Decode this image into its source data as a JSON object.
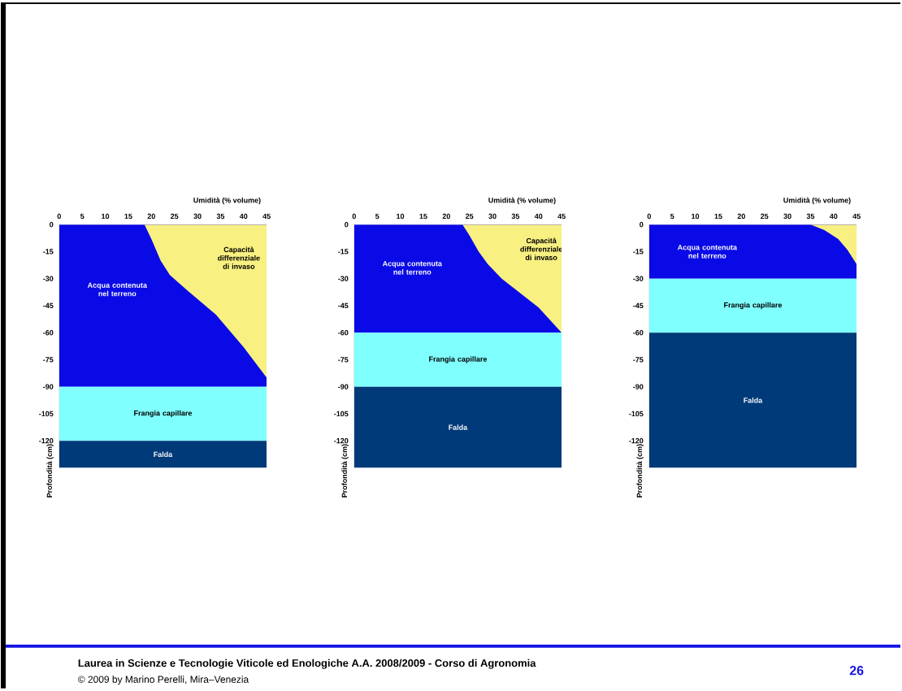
{
  "chart_data": [
    {
      "type": "area",
      "xlabel": "Umidità (% volume)",
      "ylabel": "Profondità (cm)",
      "xlim": [
        0,
        45
      ],
      "ylim": [
        -135,
        0
      ],
      "xticks": [
        0,
        5,
        10,
        15,
        20,
        25,
        30,
        35,
        40,
        45
      ],
      "yticks": [
        0,
        -15,
        -30,
        -45,
        -60,
        -75,
        -90,
        -105,
        -120
      ],
      "bands": [
        {
          "axis": "y",
          "from": -90,
          "to": 0,
          "label": "Acqua contenuta nel terreno",
          "color": "#0a0ae6"
        },
        {
          "axis": "y",
          "from": -120,
          "to": -90,
          "label": "Frangia capillare",
          "color": "#80ffff"
        },
        {
          "axis": "y",
          "from": -135,
          "to": -120,
          "label": "Falda",
          "color": "#003a78"
        }
      ],
      "series": [
        {
          "name": "Capacità differenziale di invaso",
          "color": "#f8f080",
          "x": [
            18.5,
            20,
            22,
            24,
            28,
            34,
            40,
            45
          ],
          "values": [
            0,
            -8,
            -20,
            -28,
            -37,
            -50,
            -68,
            -85
          ]
        }
      ],
      "annotations": [
        "Laurea in Scienze e Tecnologie Viticole ed Enologiche A.A. 2008/2009 - Corso di Agronomia",
        "© 2009 by Marino Perelli, Mira–Venezia",
        "26"
      ]
    },
    {
      "type": "area",
      "xlabel": "Umidità (% volume)",
      "ylabel": "Profondità (cm)",
      "xlim": [
        0,
        45
      ],
      "ylim": [
        -135,
        0
      ],
      "xticks": [
        0,
        5,
        10,
        15,
        20,
        25,
        30,
        35,
        40,
        45
      ],
      "yticks": [
        0,
        -15,
        -30,
        -45,
        -60,
        -75,
        -90,
        -105,
        -120
      ],
      "bands": [
        {
          "axis": "y",
          "from": -60,
          "to": 0,
          "label": "Acqua contenuta nel terreno",
          "color": "#0a0ae6"
        },
        {
          "axis": "y",
          "from": -90,
          "to": -60,
          "label": "Frangia capillare",
          "color": "#80ffff"
        },
        {
          "axis": "y",
          "from": -135,
          "to": -90,
          "label": "Falda",
          "color": "#003a78"
        }
      ],
      "series": [
        {
          "name": "Capacità differenziale di invaso",
          "color": "#f8f080",
          "x": [
            23.5,
            25,
            27,
            29,
            32,
            36,
            40,
            45
          ],
          "values": [
            0,
            -6,
            -15,
            -22,
            -30,
            -38,
            -46,
            -60
          ]
        }
      ]
    },
    {
      "type": "area",
      "xlabel": "Umidità (% volume)",
      "ylabel": "Profondità (cm)",
      "xlim": [
        0,
        45
      ],
      "ylim": [
        -135,
        0
      ],
      "xticks": [
        0,
        5,
        10,
        15,
        20,
        25,
        30,
        35,
        40,
        45
      ],
      "yticks": [
        0,
        -15,
        -30,
        -45,
        -60,
        -75,
        -90,
        -105,
        -120
      ],
      "bands": [
        {
          "axis": "y",
          "from": -30,
          "to": 0,
          "label": "Acqua contenuta nel terreno",
          "color": "#0a0ae6"
        },
        {
          "axis": "y",
          "from": -60,
          "to": -30,
          "label": "Frangia capillare",
          "color": "#80ffff"
        },
        {
          "axis": "y",
          "from": -135,
          "to": -60,
          "label": "Falda",
          "color": "#003a78"
        }
      ],
      "series": [
        {
          "color": "#f8f080",
          "x": [
            35,
            38,
            41,
            43,
            45
          ],
          "values": [
            0,
            -3,
            -8,
            -14,
            -22
          ]
        }
      ]
    }
  ]
}
